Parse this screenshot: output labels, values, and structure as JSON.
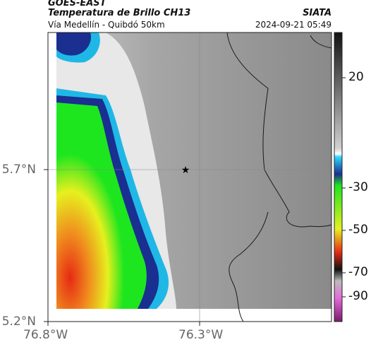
{
  "header": {
    "satellite": "GOES-EAST",
    "product": "Temperatura de Brillo CH13",
    "subtitle": "Vía Medellín - Quibdó 50km",
    "organization": "SIATA",
    "timestamp": "2024-09-21 05:49"
  },
  "axes": {
    "lat_ticks": [
      "5.7°N",
      "5.2°N"
    ],
    "lon_ticks": [
      "76.8°W",
      "76.3°W"
    ]
  },
  "colorbar": {
    "ticks": [
      "20",
      "-30",
      "-50",
      "-70",
      "-90"
    ]
  },
  "map": {
    "marker_icon": "star-icon",
    "colors": {
      "cold_blue": "#1a2f8f",
      "cyan": "#1fb8e6",
      "green": "#1ee61e",
      "yellow": "#e6f01e",
      "orange": "#f08a1e",
      "red": "#e62a14",
      "warm_gray": "#8c8c8c"
    }
  }
}
